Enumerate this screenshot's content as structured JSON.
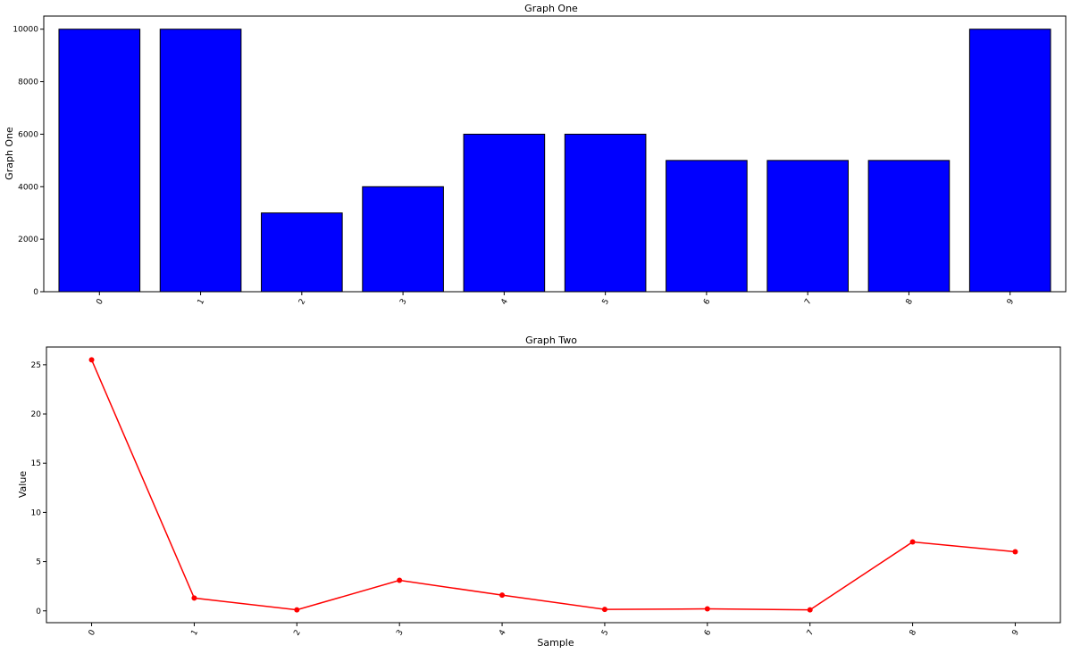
{
  "chart_data": [
    {
      "type": "bar",
      "title": "Graph One",
      "xlabel": "",
      "ylabel": "Graph One",
      "categories": [
        "0",
        "1",
        "2",
        "3",
        "4",
        "5",
        "6",
        "7",
        "8",
        "9"
      ],
      "values": [
        10000,
        10000,
        3000,
        4000,
        6000,
        6000,
        5000,
        5000,
        5000,
        10000
      ],
      "yticks": [
        "0",
        "2000",
        "4000",
        "6000",
        "8000",
        "10000"
      ],
      "ylim": [
        0,
        10500
      ],
      "grid": false,
      "bar_color": "#0000ff",
      "edge_color": "#000000"
    },
    {
      "type": "line",
      "title": "Graph Two",
      "xlabel": "Sample",
      "ylabel": "Value",
      "categories": [
        "0",
        "1",
        "2",
        "3",
        "4",
        "5",
        "6",
        "7",
        "8",
        "9"
      ],
      "values": [
        25.5,
        1.3,
        0.1,
        3.1,
        1.6,
        0.15,
        0.2,
        0.1,
        7.0,
        6.0
      ],
      "yticks": [
        "0",
        "5",
        "10",
        "15",
        "20",
        "25"
      ],
      "ylim": [
        -1.2,
        26.8
      ],
      "grid": false,
      "line_color": "#ff0000"
    }
  ]
}
